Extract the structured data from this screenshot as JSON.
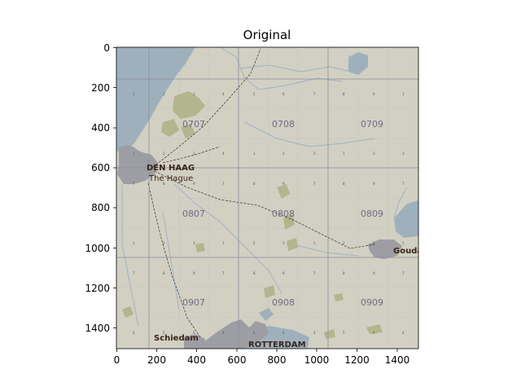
{
  "title": "Original",
  "x_ticks": [
    "0",
    "200",
    "400",
    "600",
    "800",
    "1000",
    "1200",
    "1400"
  ],
  "y_ticks": [
    "0",
    "200",
    "400",
    "600",
    "800",
    "1000",
    "1200",
    "1400"
  ],
  "grid_labels": [
    "0707",
    "0708",
    "0709",
    "0807",
    "0808",
    "0809",
    "0907",
    "0908",
    "0909"
  ],
  "places": {
    "den_haag": "DEN HAAG",
    "the_hague": "The Hague",
    "gouda": "Gouda",
    "schiedam": "Schiedam",
    "rotterdam": "ROTTERDAM"
  },
  "colors": {
    "land": "#d2d0c2",
    "water": "#9fb0bd",
    "urban": "#9d9ea4",
    "vegetation": "#b3b58c",
    "grid_major": "#8c8c9e",
    "label_purple": "#6f6a84",
    "town_text": "#3a2418"
  }
}
